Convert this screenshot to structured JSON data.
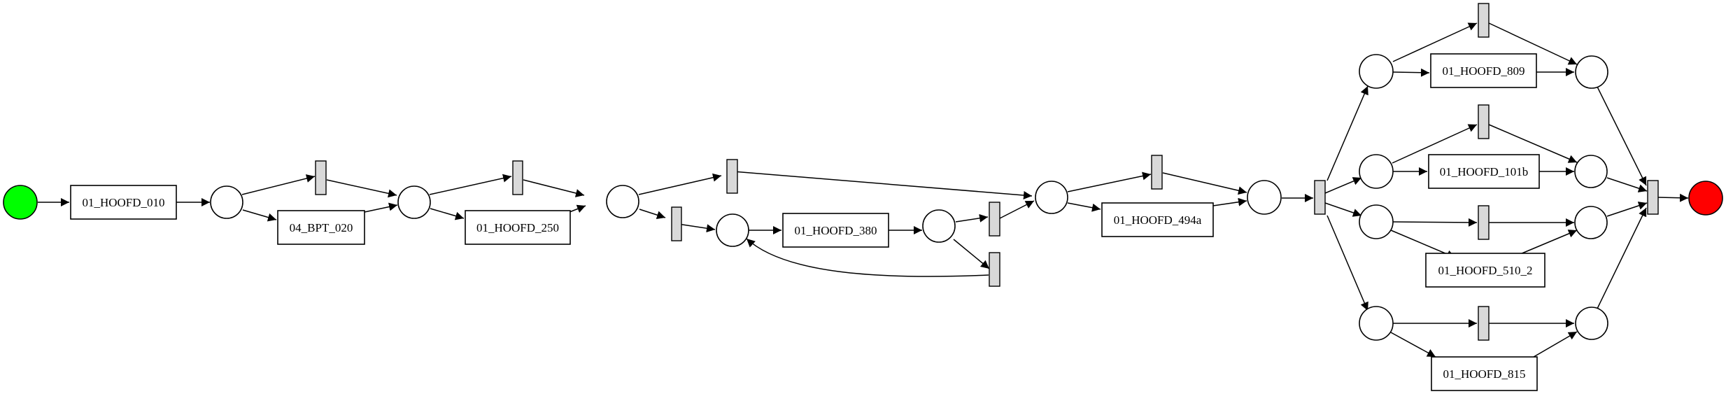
{
  "diagram": {
    "type": "petri-net",
    "colors": {
      "start_place": "#00ff00",
      "end_place": "#ff0000",
      "silent_transition": "#d9d9d9"
    },
    "tasks": {
      "t010": "01_HOOFD_010",
      "t020": "04_BPT_020",
      "t250": "01_HOOFD_250",
      "t380": "01_HOOFD_380",
      "t494a": "01_HOOFD_494a",
      "t809": "01_HOOFD_809",
      "t101b": "01_HOOFD_101b",
      "t510": "01_HOOFD_510_2",
      "t815": "01_HOOFD_815"
    }
  }
}
